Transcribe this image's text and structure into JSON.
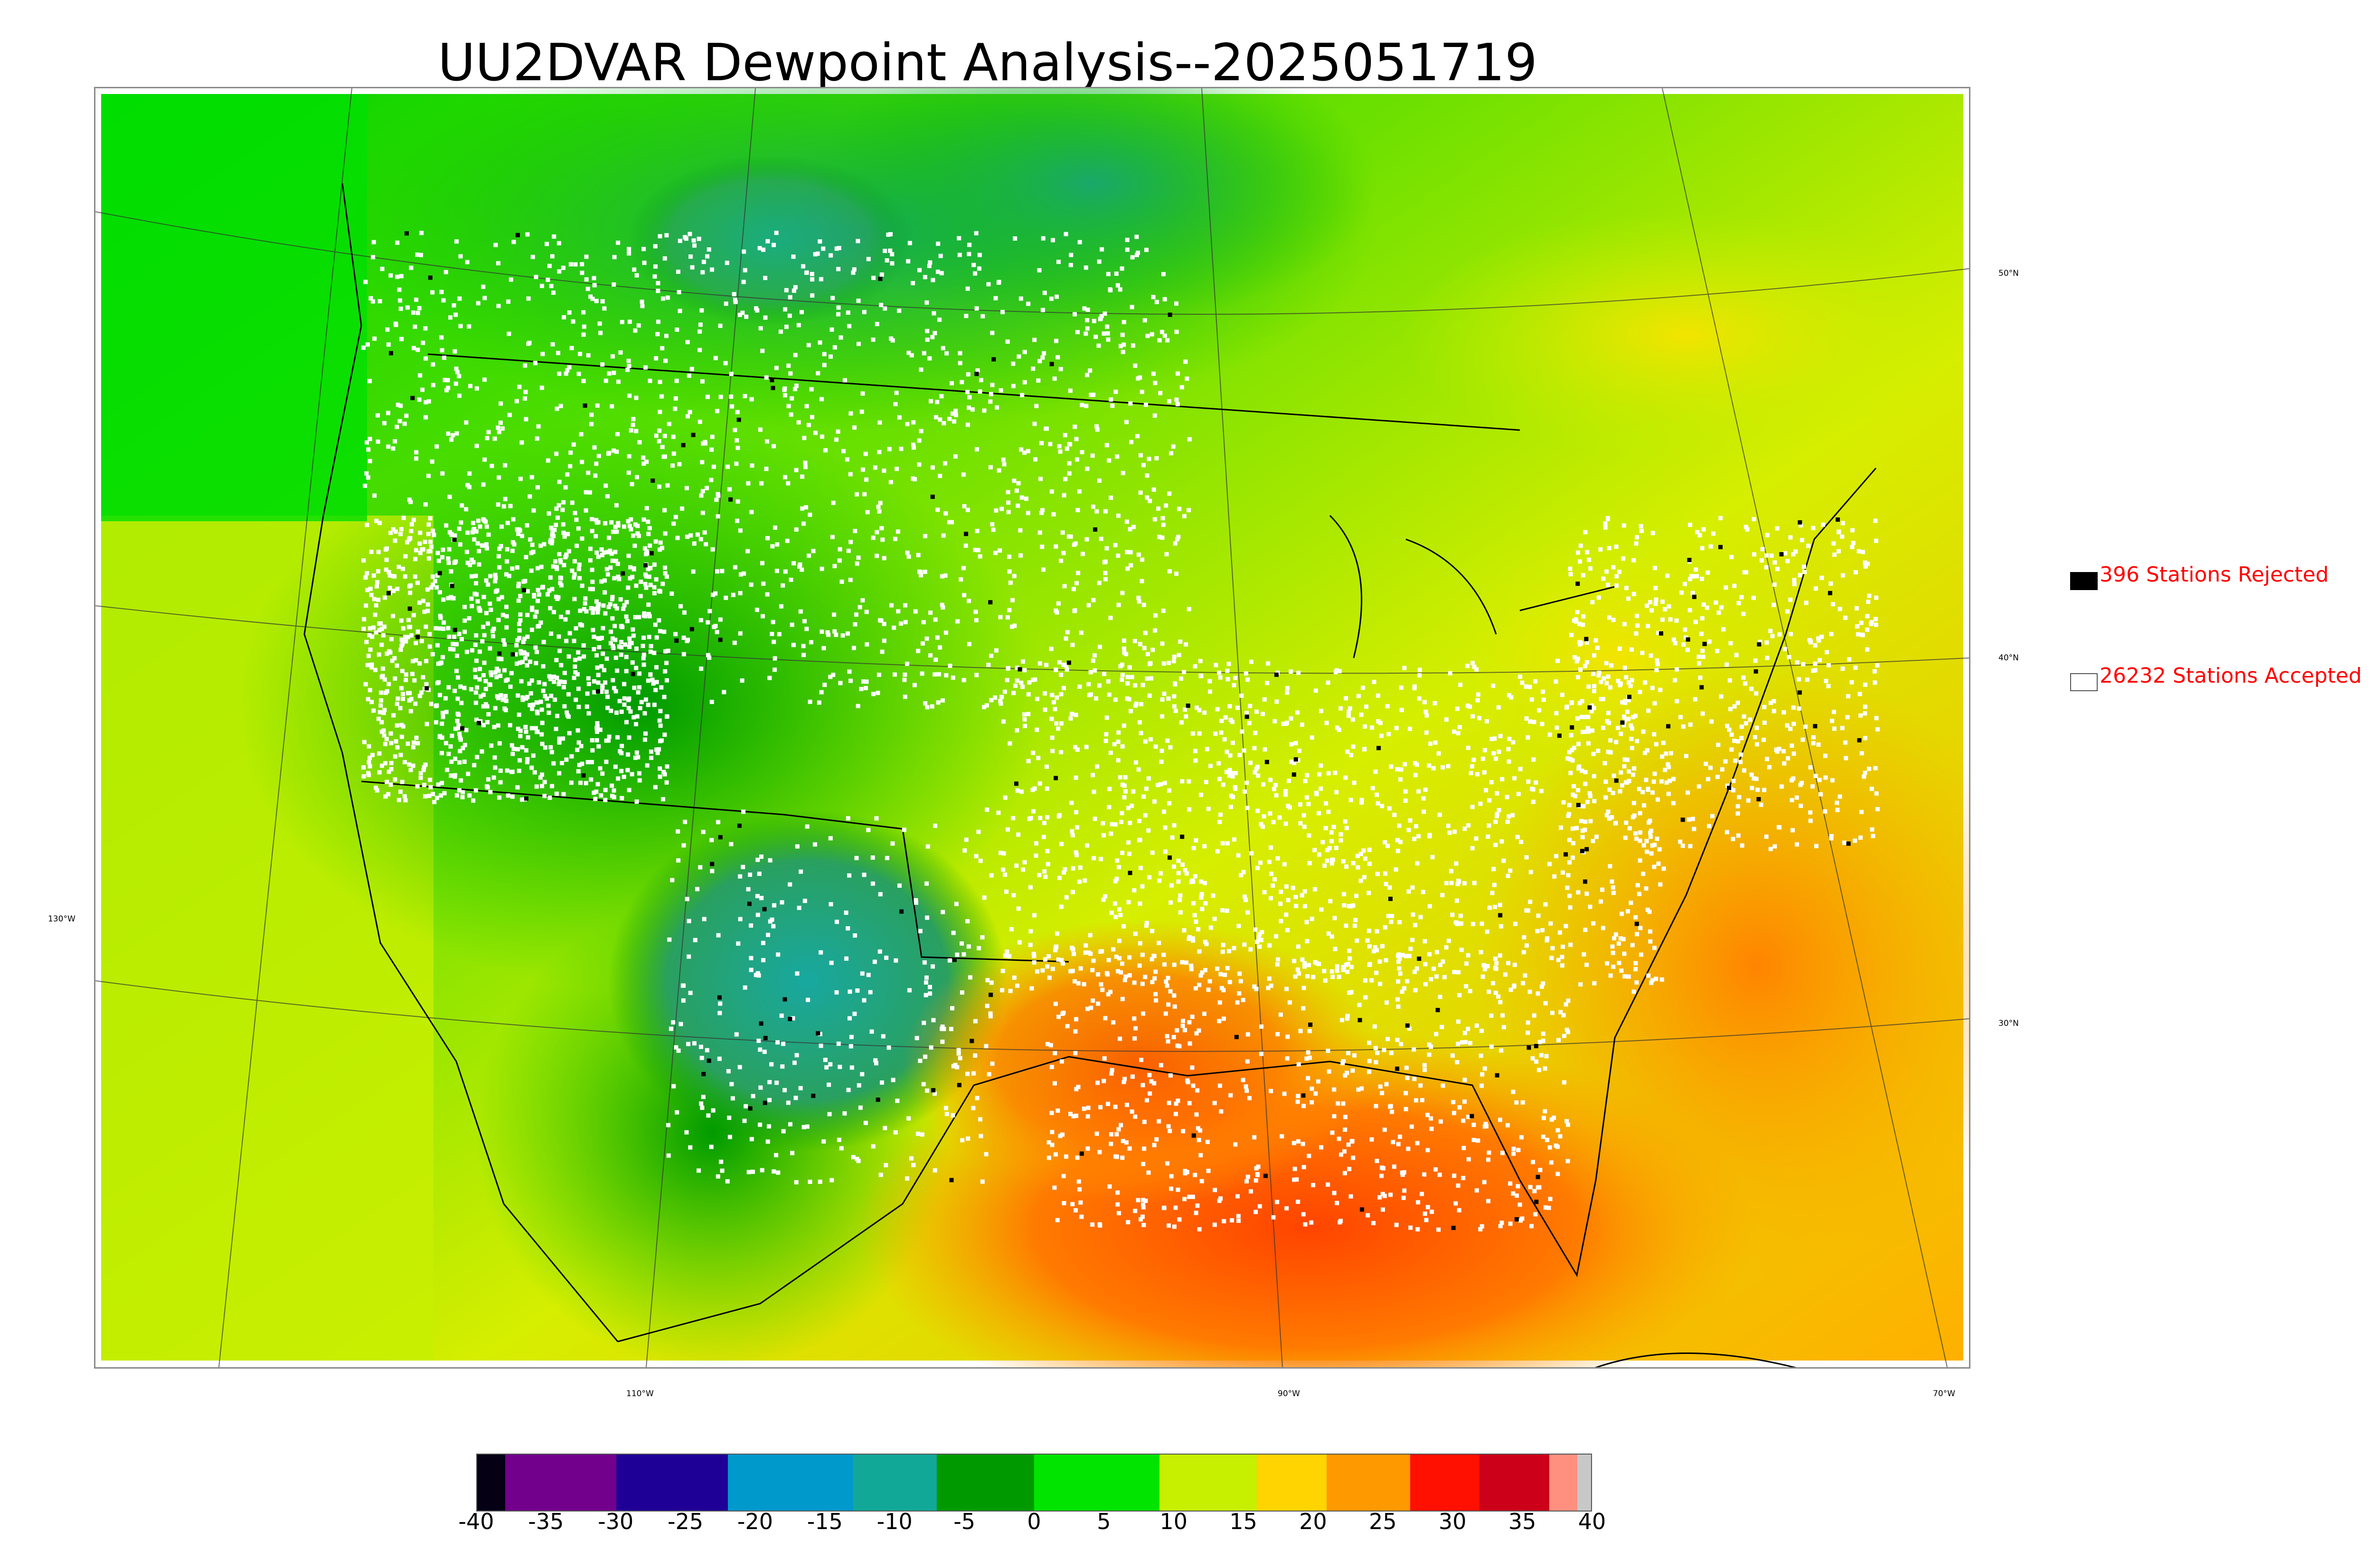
{
  "title": "UU2DVAR Dewpoint Analysis--2025051719",
  "legend": {
    "rejected": {
      "label": "396 Stations Rejected",
      "color": "#000000"
    },
    "accepted": {
      "label": "26232 Stations Accepted",
      "color": "#ffffff"
    }
  },
  "grid_labels": {
    "lat": [
      "50°N",
      "40°N",
      "30°N",
      "130°W"
    ],
    "lon": [
      "110°W",
      "90°W",
      "70°W"
    ]
  },
  "colorbar": {
    "min": -40,
    "max": 40,
    "ticks": [
      "-40",
      "-35",
      "-30",
      "-25",
      "-20",
      "-15",
      "-10",
      "-5",
      "0",
      "5",
      "10",
      "15",
      "20",
      "25",
      "30",
      "35",
      "40"
    ],
    "colors": [
      {
        "from": -40,
        "to": -38,
        "color": "#050014"
      },
      {
        "from": -38,
        "to": -30,
        "color": "#72008c"
      },
      {
        "from": -30,
        "to": -22,
        "color": "#1f0096"
      },
      {
        "from": -22,
        "to": -13,
        "color": "#0099cc"
      },
      {
        "from": -13,
        "to": -7,
        "color": "#12a898"
      },
      {
        "from": -7,
        "to": 0,
        "color": "#009a00"
      },
      {
        "from": 0,
        "to": 9,
        "color": "#00e400"
      },
      {
        "from": 9,
        "to": 16,
        "color": "#c6f000"
      },
      {
        "from": 16,
        "to": 21,
        "color": "#ffd400"
      },
      {
        "from": 21,
        "to": 27,
        "color": "#ff9900"
      },
      {
        "from": 27,
        "to": 32,
        "color": "#ff1000"
      },
      {
        "from": 32,
        "to": 37,
        "color": "#cc0018"
      },
      {
        "from": 37,
        "to": 39,
        "color": "#ff9080"
      },
      {
        "from": 39,
        "to": 40,
        "color": "#c8c8c8"
      }
    ]
  }
}
